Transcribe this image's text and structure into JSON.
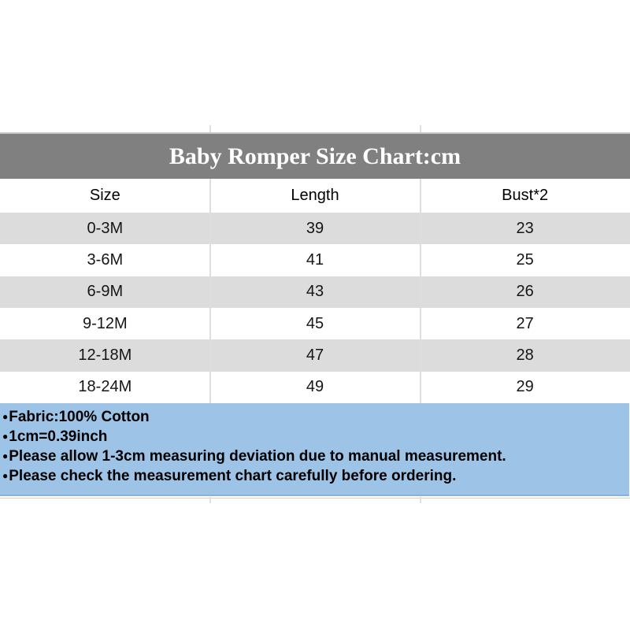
{
  "page": {
    "title": "Baby Romper Size Chart:cm"
  },
  "table": {
    "headers": {
      "size": "Size",
      "length": "Length",
      "bust": "Bust*2"
    },
    "rows": [
      {
        "size": "0-3M",
        "length": "39",
        "bust": "23"
      },
      {
        "size": "3-6M",
        "length": "41",
        "bust": "25"
      },
      {
        "size": "6-9M",
        "length": "43",
        "bust": "26"
      },
      {
        "size": "9-12M",
        "length": "45",
        "bust": "27"
      },
      {
        "size": "12-18M",
        "length": "47",
        "bust": "28"
      },
      {
        "size": "18-24M",
        "length": "49",
        "bust": "29"
      }
    ]
  },
  "notes": {
    "bullet": "●",
    "items": [
      "Fabric:100% Cotton",
      "1cm=0.39inch",
      "Please allow 1-3cm measuring deviation due to manual measurement.",
      "Please check the measurement chart carefully before ordering."
    ]
  },
  "colors": {
    "title_band": "#808080",
    "title_text": "#ffffff",
    "row_stripe": "#dcdcdc",
    "row_white": "#ffffff",
    "notes_background": "#9dc3e6",
    "grid_line": "#dedede"
  },
  "chart_data": {
    "type": "table",
    "title": "Baby Romper Size Chart:cm",
    "columns": [
      "Size",
      "Length",
      "Bust*2"
    ],
    "rows": [
      [
        "0-3M",
        39,
        23
      ],
      [
        "3-6M",
        41,
        25
      ],
      [
        "6-9M",
        43,
        26
      ],
      [
        "9-12M",
        45,
        27
      ],
      [
        "12-18M",
        47,
        28
      ],
      [
        "18-24M",
        49,
        29
      ]
    ],
    "notes": [
      "Fabric:100% Cotton",
      "1cm=0.39inch",
      "Please allow 1-3cm measuring deviation due to manual measurement.",
      "Please check the measurement chart carefully before ordering."
    ]
  }
}
